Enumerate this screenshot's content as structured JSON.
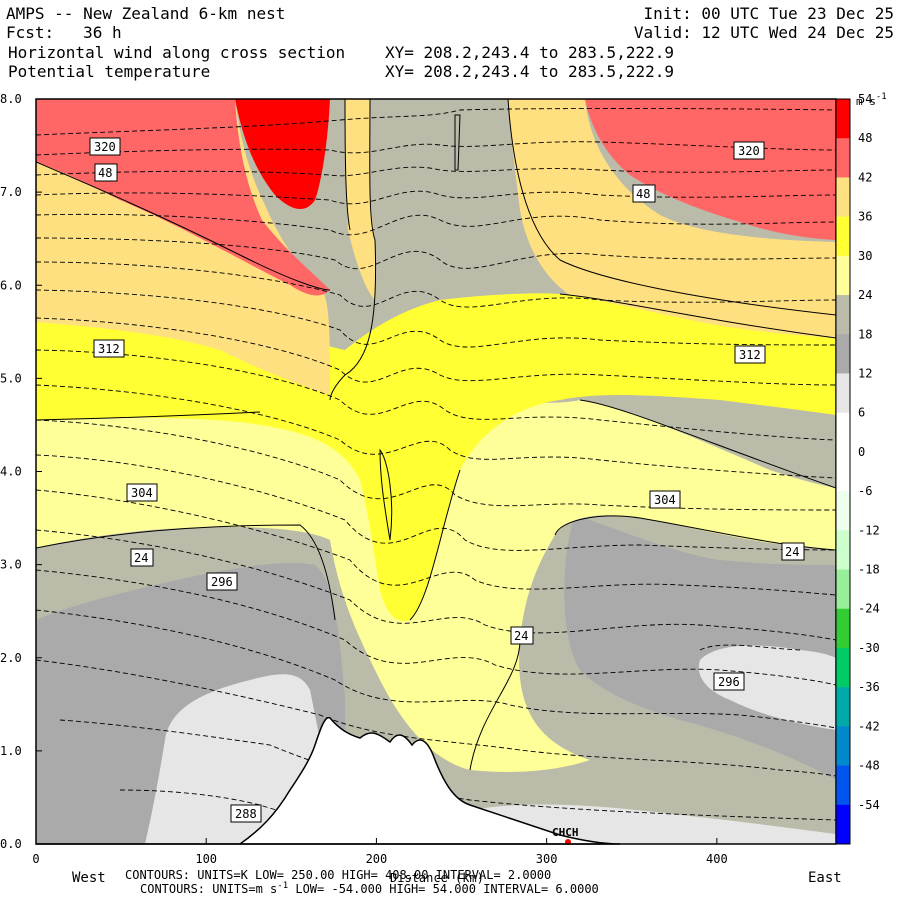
{
  "header": {
    "line1_left": "AMPS -- New Zealand 6-km nest",
    "line2_left": "Fcst:   36 h",
    "line3_left": "Horizontal wind along cross section",
    "line4_left": "Potential temperature",
    "line1_right": "Init: 00 UTC Tue 23 Dec 25",
    "line2_right": "Valid: 12 UTC Wed 24 Dec 25",
    "line3_right": "XY= 208.2,243.4 to 283.5,222.9",
    "line4_right": "XY= 208.2,243.4 to 283.5,222.9"
  },
  "footer": {
    "west": "West",
    "east": "East",
    "xlabel": "Distance (km)",
    "contours1": "CONTOURS:  UNITS=K  LOW=  250.00      HIGH=  408.00        INTERVAL=   2.0000",
    "contours2_pre": "CONTOURS:  UNITS=m s",
    "contours2_sup": "-1",
    "contours2_post": "  LOW=  -54.000      HIGH=  54.000       INTERVAL=   6.0000",
    "station": "CHCH"
  },
  "colors": {
    "c48_54": "#ff0000",
    "c42_48": "#ff6666",
    "c36_42": "#ffe080",
    "c30_36": "#ffff33",
    "c24_30": "#ffff99",
    "c18_24": "#bbbbaa",
    "c12_18": "#aaaaaa",
    "c6_12": "#e6e6e6",
    "terrain": "#ffffff"
  },
  "chart_data": {
    "type": "cross-section",
    "xlim": [
      0,
      470
    ],
    "ylim": [
      0,
      8
    ],
    "x_ticks": [
      0,
      100,
      200,
      300,
      400
    ],
    "y_ticks": [
      "0.0",
      "1.0",
      "2.0",
      "3.0",
      "4.0",
      "5.0",
      "6.0",
      "7.0",
      "8.0"
    ],
    "colorbar": {
      "units": "m s",
      "units_sup": "-1",
      "labels": [
        "54",
        "48",
        "42",
        "36",
        "30",
        "24",
        "18",
        "12",
        "6",
        "0",
        "-6",
        "-12",
        "-18",
        "-24",
        "-30",
        "-36",
        "-42",
        "-48",
        "-54"
      ],
      "colors_top_to_bottom": [
        "#ff0000",
        "#ff6666",
        "#ffe080",
        "#ffff33",
        "#ffff99",
        "#bbbbaa",
        "#aaaaaa",
        "#e6e6e6",
        "#ffffff",
        "#ffffff",
        "#eeffee",
        "#ccffcc",
        "#99ee99",
        "#33cc33",
        "#00cc66",
        "#00aaaa",
        "#0088cc",
        "#0055ee",
        "#0000ff"
      ]
    },
    "theta_labels": [
      "320",
      "312",
      "304",
      "296",
      "288",
      "320",
      "312",
      "304",
      "296"
    ],
    "wind_labels": [
      "48",
      "24",
      "48",
      "24",
      "24"
    ]
  }
}
